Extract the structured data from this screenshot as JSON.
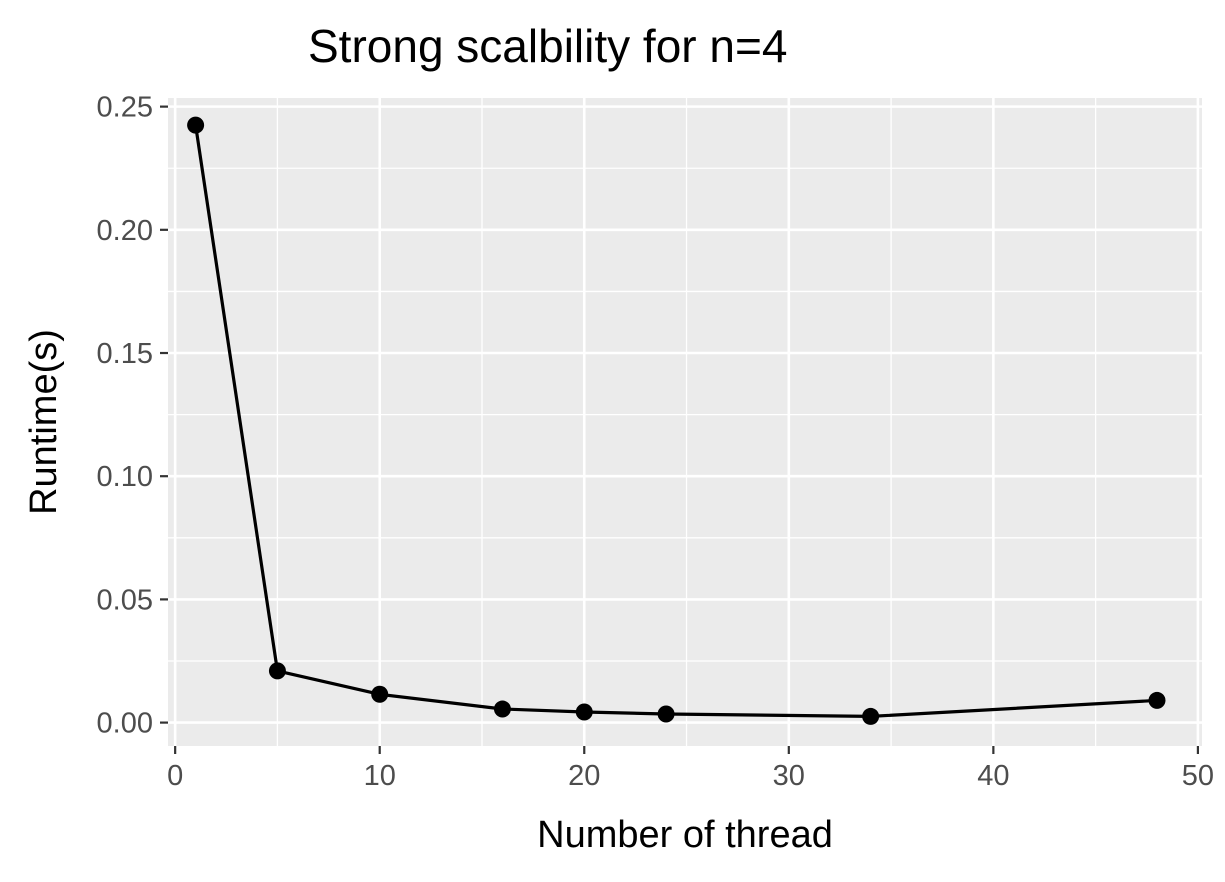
{
  "chart_data": {
    "type": "line",
    "title": "Strong scalbility for n=4",
    "xlabel": "Number of thread",
    "ylabel": "Runtime(s)",
    "xlim": [
      -0.35,
      50.2
    ],
    "ylim": [
      -0.0095,
      0.2535
    ],
    "x_ticks": [
      0,
      10,
      20,
      30,
      40,
      50
    ],
    "x_tick_labels": [
      "0",
      "10",
      "20",
      "30",
      "40",
      "50"
    ],
    "y_ticks": [
      0.0,
      0.05,
      0.1,
      0.15,
      0.2,
      0.25
    ],
    "y_tick_labels": [
      "0.00",
      "0.05",
      "0.10",
      "0.15",
      "0.20",
      "0.25"
    ],
    "grid": true,
    "legend": "none",
    "colors": {
      "panel": "#ebebeb",
      "grid": "#ffffff",
      "line": "#000000",
      "tick_text": "#4d4d4d",
      "tick_mark": "#333333"
    },
    "series": [
      {
        "x": [
          1,
          5,
          10,
          16,
          20,
          24,
          34,
          48
        ],
        "values": [
          0.2425,
          0.021,
          0.0115,
          0.0055,
          0.0043,
          0.0035,
          0.0025,
          0.009
        ]
      }
    ]
  }
}
